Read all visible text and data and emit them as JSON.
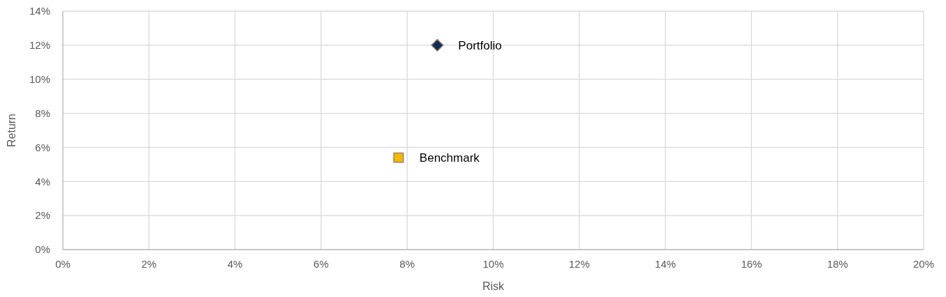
{
  "chart_data": {
    "type": "scatter",
    "xlabel": "Risk",
    "ylabel": "Return",
    "xlim": [
      0,
      20
    ],
    "ylim": [
      0,
      14
    ],
    "xticks": [
      {
        "value": 0,
        "label": "0%"
      },
      {
        "value": 2,
        "label": "2%"
      },
      {
        "value": 4,
        "label": "4%"
      },
      {
        "value": 6,
        "label": "6%"
      },
      {
        "value": 8,
        "label": "8%"
      },
      {
        "value": 10,
        "label": "10%"
      },
      {
        "value": 12,
        "label": "12%"
      },
      {
        "value": 14,
        "label": "14%"
      },
      {
        "value": 16,
        "label": "16%"
      },
      {
        "value": 18,
        "label": "18%"
      },
      {
        "value": 20,
        "label": "20%"
      }
    ],
    "yticks": [
      {
        "value": 0,
        "label": "0%"
      },
      {
        "value": 2,
        "label": "2%"
      },
      {
        "value": 4,
        "label": "4%"
      },
      {
        "value": 6,
        "label": "6%"
      },
      {
        "value": 8,
        "label": "8%"
      },
      {
        "value": 10,
        "label": "10%"
      },
      {
        "value": 12,
        "label": "12%"
      },
      {
        "value": 14,
        "label": "14%"
      }
    ],
    "grid": true,
    "legend": false,
    "series": [
      {
        "name": "Portfolio",
        "color": "#0b2e5e",
        "marker": "diamond",
        "x": [
          8.7
        ],
        "values": [
          12.0
        ]
      },
      {
        "name": "Benchmark",
        "color": "#f5b800",
        "marker": "square",
        "x": [
          7.8
        ],
        "values": [
          5.4
        ]
      }
    ]
  }
}
